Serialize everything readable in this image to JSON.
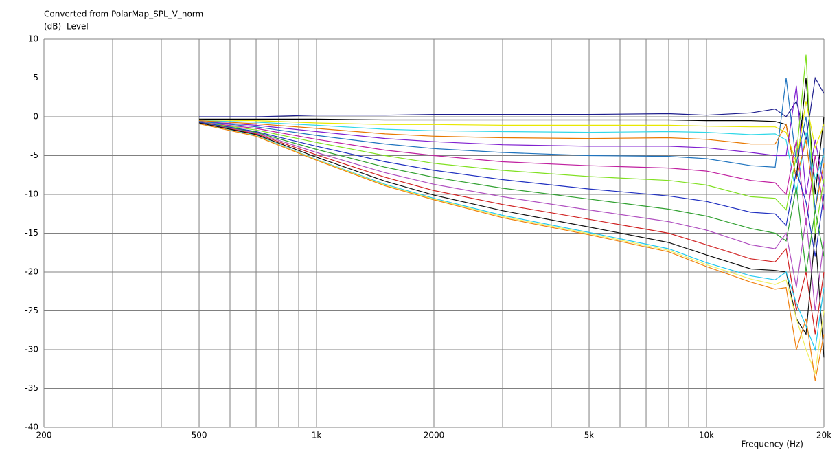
{
  "chart_data": {
    "type": "line",
    "title": "Converted from PolarMap_SPL_V_norm",
    "y_unit": "(dB)",
    "y_label": "Level",
    "x_label": "Frequency  (Hz)",
    "log_x": true,
    "grid": true,
    "x": [
      500,
      700,
      1000,
      1500,
      2000,
      3000,
      5000,
      8000,
      10000,
      13000,
      15000,
      16000,
      17000,
      18000,
      19000,
      20000
    ],
    "xlim": [
      200,
      20000
    ],
    "xticks": [
      200,
      500,
      {
        "value": 1000,
        "label": "1k"
      },
      2000,
      {
        "value": 5000,
        "label": "5k"
      },
      {
        "value": 10000,
        "label": "10k"
      },
      {
        "value": 20000,
        "label": "20k"
      }
    ],
    "xgrid": [
      300,
      400,
      600,
      700,
      800,
      900,
      3000,
      4000,
      6000,
      7000,
      8000,
      9000
    ],
    "ylim": [
      -40,
      10
    ],
    "yticks": [
      -40,
      -35,
      -30,
      -25,
      -20,
      -15,
      -10,
      -5,
      0,
      5,
      10
    ],
    "series": [
      {
        "color": "#1c1c8c",
        "values": [
          0,
          0,
          0.2,
          0.2,
          0.3,
          0.3,
          0.3,
          0.4,
          0.2,
          0.5,
          1,
          0,
          2,
          -3,
          5,
          3
        ]
      },
      {
        "color": "#000000",
        "values": [
          -0.3,
          -0.3,
          -0.3,
          -0.4,
          -0.4,
          -0.4,
          -0.4,
          -0.4,
          -0.5,
          -0.5,
          -0.6,
          -1,
          -8,
          5,
          -10,
          0
        ]
      },
      {
        "color": "#e8e800",
        "values": [
          -0.4,
          -0.5,
          -0.8,
          -1,
          -1,
          -1.1,
          -1.1,
          -1.1,
          -1.2,
          -1.3,
          -1.3,
          -2,
          -6,
          2,
          -4,
          -1
        ]
      },
      {
        "color": "#30d8e8",
        "values": [
          -0.5,
          -0.7,
          -1.1,
          -1.6,
          -1.8,
          -1.9,
          -2,
          -1.9,
          -2,
          -2.3,
          -2.2,
          -3,
          -10,
          -2,
          -8,
          -5
        ]
      },
      {
        "color": "#e87800",
        "values": [
          -0.5,
          -0.9,
          -1.5,
          -2.2,
          -2.5,
          -2.7,
          -2.8,
          -2.7,
          -2.9,
          -3.5,
          -3.5,
          -1,
          -8,
          -3,
          -12,
          -6
        ]
      },
      {
        "color": "#8020d0",
        "values": [
          -0.6,
          -1.1,
          -1.9,
          -2.8,
          -3.2,
          -3.6,
          -3.8,
          -3.8,
          -4,
          -4.6,
          -5,
          -5,
          4,
          -10,
          -3,
          -9
        ]
      },
      {
        "color": "#1e73be",
        "values": [
          -0.6,
          -1.3,
          -2.4,
          -3.5,
          -4.1,
          -4.6,
          -5,
          -5.1,
          -5.4,
          -6.3,
          -6.5,
          5,
          -6,
          0,
          -12,
          -4
        ]
      },
      {
        "color": "#c020a0",
        "values": [
          -0.7,
          -1.5,
          -2.9,
          -4.3,
          -5,
          -5.8,
          -6.3,
          -6.6,
          -7,
          -8.2,
          -8.5,
          -10,
          -3,
          -14,
          -5,
          -12
        ]
      },
      {
        "color": "#80e020",
        "values": [
          -0.7,
          -1.7,
          -3.3,
          -5,
          -6,
          -6.9,
          -7.7,
          -8.2,
          -8.8,
          -10.3,
          -10.5,
          -12,
          -5,
          8,
          -15,
          -8
        ]
      },
      {
        "color": "#2030c0",
        "values": [
          -0.7,
          -1.9,
          -3.8,
          -5.8,
          -6.9,
          -8.1,
          -9.3,
          -10.2,
          -10.9,
          -12.3,
          -12.5,
          -14,
          -7,
          -11,
          -18,
          -10
        ]
      },
      {
        "color": "#30a030",
        "values": [
          -0.8,
          -2,
          -4.2,
          -6.5,
          -7.8,
          -9.2,
          -10.6,
          -11.9,
          -12.8,
          -14.4,
          -15,
          -16,
          -9,
          -20,
          -12,
          -18
        ]
      },
      {
        "color": "#b050c0",
        "values": [
          -0.8,
          -2.1,
          -4.6,
          -7.2,
          -8.7,
          -10.3,
          -12,
          -13.5,
          -14.6,
          -16.5,
          -17,
          -15,
          -22,
          -13,
          -25,
          -16
        ]
      },
      {
        "color": "#d02020",
        "values": [
          -0.8,
          -2.2,
          -4.9,
          -7.8,
          -9.5,
          -11.3,
          -13.2,
          -15,
          -16.5,
          -18.3,
          -18.7,
          -17,
          -25,
          -20,
          -28,
          -20
        ]
      },
      {
        "color": "#101010",
        "values": [
          -0.8,
          -2.3,
          -5.2,
          -8.3,
          -10.1,
          -12.1,
          -14.2,
          -16.2,
          -17.8,
          -19.6,
          -19.8,
          -20,
          -26,
          -28,
          -15,
          -31
        ]
      },
      {
        "color": "#20c8f0",
        "values": [
          -0.9,
          -2.4,
          -5.5,
          -8.7,
          -10.5,
          -12.7,
          -14.9,
          -17,
          -18.8,
          -20.5,
          -21,
          -20,
          -24,
          -27,
          -30,
          -22
        ]
      },
      {
        "color": "#f0f060",
        "values": [
          -0.9,
          -2.45,
          -5.55,
          -8.8,
          -10.6,
          -12.85,
          -15.05,
          -17.2,
          -19.05,
          -20.9,
          -21.6,
          -21,
          -26,
          -30,
          -33,
          -25
        ]
      },
      {
        "color": "#f08010",
        "values": [
          -0.9,
          -2.5,
          -5.6,
          -8.9,
          -10.7,
          -13,
          -15.2,
          -17.4,
          -19.3,
          -21.3,
          -22.2,
          -22,
          -30,
          -26,
          -34,
          -28
        ]
      }
    ]
  }
}
